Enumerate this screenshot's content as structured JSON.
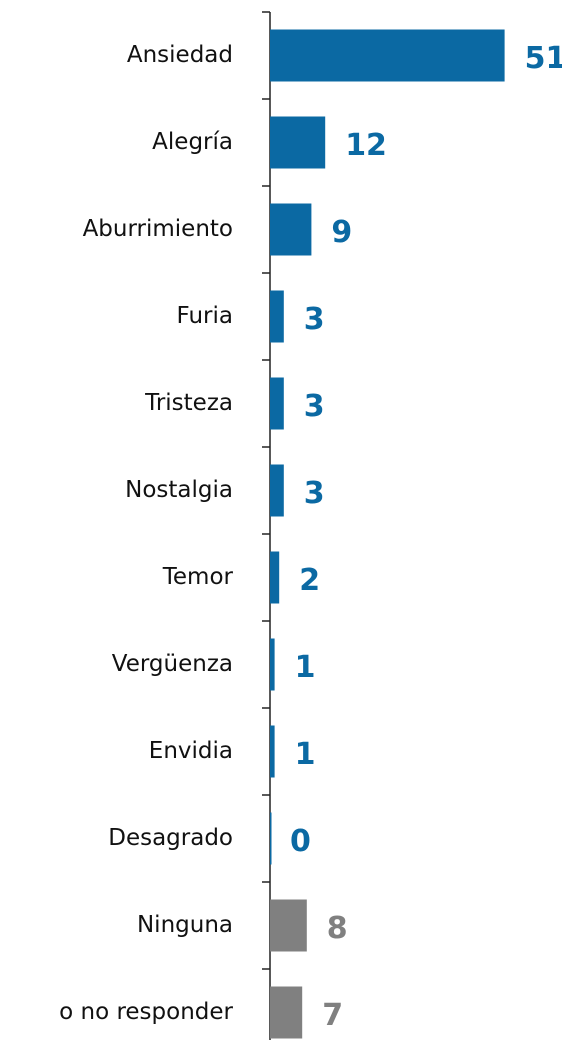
{
  "chart_data": {
    "type": "barh",
    "categories": [
      "Ansiedad",
      "Alegría",
      "Aburrimiento",
      "Furia",
      "Tristeza",
      "Nostalgia",
      "Temor",
      "Vergüenza",
      "Envidia",
      "Desagrado",
      "Ninguna",
      "o no responder"
    ],
    "values": [
      51,
      12,
      9,
      3,
      3,
      3,
      2,
      1,
      1,
      0,
      8,
      7
    ],
    "colors": [
      "#0b69a3",
      "#0b69a3",
      "#0b69a3",
      "#0b69a3",
      "#0b69a3",
      "#0b69a3",
      "#0b69a3",
      "#0b69a3",
      "#0b69a3",
      "#0b69a3",
      "#808080",
      "#808080"
    ],
    "xlim": [
      0,
      60
    ]
  }
}
